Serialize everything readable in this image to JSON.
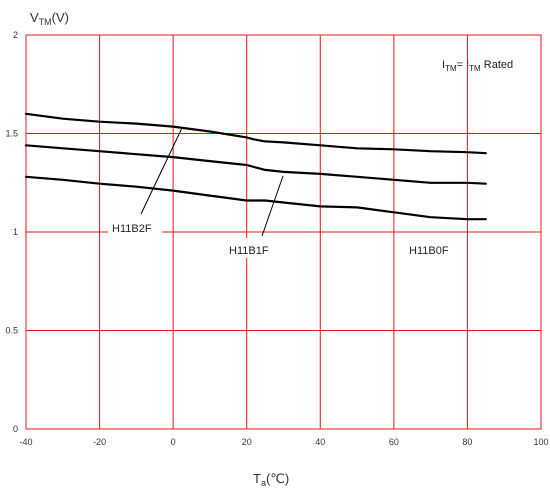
{
  "chart_data": {
    "type": "line",
    "title": "",
    "xlabel": {
      "main": "T",
      "sub": "a",
      "unit": "(℃)"
    },
    "ylabel": {
      "main": "V",
      "sub": "TM",
      "unit": "(V)"
    },
    "xlim": [
      -40,
      100
    ],
    "ylim": [
      0,
      2
    ],
    "x_ticks": [
      "-40",
      "-20",
      "0",
      "20",
      "40",
      "60",
      "80",
      "100"
    ],
    "y_ticks": [
      "0",
      "0.5",
      "1",
      "1.5",
      "2"
    ],
    "grid": true,
    "annotation": {
      "p1": "I",
      "s1": "TM",
      "eq": "= I",
      "s2": "TM",
      "rest": " Rated"
    },
    "series": [
      {
        "name": "H11B2F",
        "x": [
          -40,
          -30,
          -20,
          -10,
          0,
          10,
          20,
          22,
          25,
          30,
          40,
          50,
          60,
          70,
          80,
          85
        ],
        "y": [
          1.6,
          1.575,
          1.56,
          1.55,
          1.535,
          1.51,
          1.48,
          1.47,
          1.46,
          1.455,
          1.44,
          1.425,
          1.42,
          1.41,
          1.405,
          1.4
        ]
      },
      {
        "name": "H11B1F",
        "x": [
          -40,
          -30,
          -20,
          -10,
          0,
          10,
          20,
          22,
          25,
          30,
          40,
          50,
          60,
          70,
          80,
          85
        ],
        "y": [
          1.44,
          1.425,
          1.41,
          1.395,
          1.38,
          1.36,
          1.34,
          1.33,
          1.315,
          1.305,
          1.295,
          1.28,
          1.265,
          1.25,
          1.25,
          1.245
        ]
      },
      {
        "name": "H11B0F",
        "x": [
          -40,
          -30,
          -20,
          -10,
          0,
          10,
          20,
          25,
          30,
          40,
          50,
          60,
          70,
          80,
          85
        ],
        "y": [
          1.28,
          1.265,
          1.245,
          1.23,
          1.21,
          1.185,
          1.16,
          1.16,
          1.15,
          1.13,
          1.125,
          1.1,
          1.075,
          1.065,
          1.065
        ]
      }
    ],
    "series_labels": [
      "H11B2F",
      "H11B1F",
      "H11B0F"
    ]
  }
}
